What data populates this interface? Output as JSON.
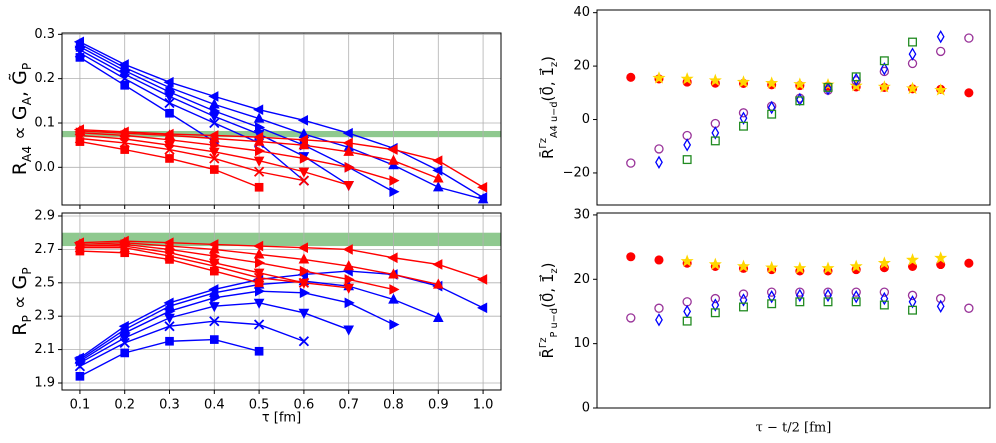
{
  "chart_data": [
    {
      "type": "line",
      "ylabel": "R_{A4} ∝ G_{A}, G̃_{P}",
      "x": [
        0.1,
        0.2,
        0.3,
        0.4,
        0.5,
        0.6,
        0.7,
        0.8,
        0.9,
        1.0
      ],
      "xlim": [
        0.06,
        1.04
      ],
      "ylim": [
        -0.085,
        0.303
      ],
      "xticks": [
        0.1,
        0.2,
        0.3,
        0.4,
        0.5,
        0.6,
        0.7,
        0.8,
        0.9,
        {
          "value": 1,
          "label": "1.0"
        }
      ],
      "show_xtick_labels": false,
      "yticks": [
        {
          "value": 0,
          "label": "0.0"
        },
        0.1,
        0.2,
        0.3
      ],
      "grid": true,
      "band": [
        0.068,
        0.082
      ],
      "band_color": "#8fc98f",
      "series": [
        {
          "color": "#0000ff",
          "marker": "triangle-left",
          "values": [
            0.283,
            0.232,
            0.192,
            0.16,
            0.13,
            0.106,
            0.077,
            0.043,
            -0.007,
            -0.068
          ]
        },
        {
          "color": "#0000ff",
          "marker": "triangle-up",
          "values": [
            0.278,
            0.225,
            0.18,
            0.142,
            0.11,
            0.075,
            0.045,
            0.005,
            -0.045,
            -0.072
          ]
        },
        {
          "color": "#0000ff",
          "marker": "triangle-right",
          "values": [
            0.272,
            0.218,
            0.17,
            0.127,
            0.09,
            0.05,
            0.0,
            -0.055,
            null,
            null
          ]
        },
        {
          "color": "#0000ff",
          "marker": "triangle-down",
          "values": [
            0.265,
            0.21,
            0.16,
            0.115,
            0.075,
            0.025,
            -0.04,
            null,
            null,
            null
          ]
        },
        {
          "color": "#0000ff",
          "marker": "x",
          "values": [
            0.258,
            0.2,
            0.145,
            0.1,
            0.055,
            -0.03,
            null,
            null,
            null,
            null
          ]
        },
        {
          "color": "#0000ff",
          "marker": "square",
          "values": [
            0.248,
            0.185,
            0.122,
            0.058,
            null,
            null,
            null,
            null,
            null,
            null
          ]
        },
        {
          "color": "#ff0000",
          "marker": "triangle-left",
          "values": [
            0.085,
            0.08,
            0.075,
            0.072,
            0.068,
            0.062,
            0.055,
            0.04,
            0.015,
            -0.045
          ]
        },
        {
          "color": "#ff0000",
          "marker": "triangle-up",
          "values": [
            0.082,
            0.077,
            0.072,
            0.065,
            0.058,
            0.05,
            0.035,
            0.015,
            -0.025,
            null
          ]
        },
        {
          "color": "#ff0000",
          "marker": "triangle-right",
          "values": [
            0.078,
            0.072,
            0.062,
            0.05,
            0.037,
            0.02,
            0.0,
            -0.03,
            null,
            null
          ]
        },
        {
          "color": "#ff0000",
          "marker": "triangle-down",
          "values": [
            0.072,
            0.064,
            0.05,
            0.035,
            0.015,
            -0.01,
            -0.04,
            null,
            null,
            null
          ]
        },
        {
          "color": "#ff0000",
          "marker": "x",
          "values": [
            0.065,
            0.055,
            0.04,
            0.02,
            -0.01,
            -0.03,
            null,
            null,
            null,
            null
          ]
        },
        {
          "color": "#ff0000",
          "marker": "square",
          "values": [
            0.058,
            0.04,
            0.02,
            -0.005,
            -0.045,
            null,
            null,
            null,
            null,
            null
          ]
        }
      ]
    },
    {
      "type": "line",
      "ylabel": "R_{P} ∝ G_{P}",
      "xlabel": "τ [fm]",
      "x": [
        0.1,
        0.2,
        0.3,
        0.4,
        0.5,
        0.6,
        0.7,
        0.8,
        0.9,
        1.0
      ],
      "xlim": [
        0.06,
        1.04
      ],
      "ylim": [
        1.858,
        2.918
      ],
      "xticks": [
        0.1,
        0.2,
        0.3,
        0.4,
        0.5,
        0.6,
        0.7,
        0.8,
        0.9,
        {
          "value": 1,
          "label": "1.0"
        }
      ],
      "show_xtick_labels": true,
      "yticks": [
        1.9,
        2.1,
        2.3,
        2.5,
        2.7,
        2.9
      ],
      "grid": true,
      "band": [
        2.72,
        2.8
      ],
      "band_color": "#8fc98f",
      "series": [
        {
          "color": "#0000ff",
          "marker": "triangle-left",
          "values": [
            2.05,
            2.24,
            2.38,
            2.46,
            2.52,
            2.55,
            2.57,
            2.55,
            2.48,
            2.35
          ]
        },
        {
          "color": "#0000ff",
          "marker": "triangle-up",
          "values": [
            2.04,
            2.22,
            2.36,
            2.44,
            2.49,
            2.51,
            2.48,
            2.4,
            2.29,
            null
          ]
        },
        {
          "color": "#0000ff",
          "marker": "triangle-right",
          "values": [
            2.03,
            2.2,
            2.33,
            2.41,
            2.45,
            2.44,
            2.38,
            2.25,
            null,
            null
          ]
        },
        {
          "color": "#0000ff",
          "marker": "triangle-down",
          "values": [
            2.02,
            2.17,
            2.29,
            2.36,
            2.38,
            2.32,
            2.22,
            null,
            null,
            null
          ]
        },
        {
          "color": "#0000ff",
          "marker": "x",
          "values": [
            2.0,
            2.14,
            2.24,
            2.27,
            2.25,
            2.15,
            null,
            null,
            null,
            null
          ]
        },
        {
          "color": "#0000ff",
          "marker": "square",
          "values": [
            1.94,
            2.08,
            2.15,
            2.16,
            2.09,
            null,
            null,
            null,
            null,
            null
          ]
        },
        {
          "color": "#ff0000",
          "marker": "triangle-left",
          "values": [
            2.74,
            2.75,
            2.74,
            2.73,
            2.72,
            2.71,
            2.7,
            2.65,
            2.61,
            2.52
          ]
        },
        {
          "color": "#ff0000",
          "marker": "triangle-up",
          "values": [
            2.73,
            2.74,
            2.72,
            2.7,
            2.67,
            2.64,
            2.6,
            2.55,
            2.49,
            null
          ]
        },
        {
          "color": "#ff0000",
          "marker": "triangle-right",
          "values": [
            2.72,
            2.73,
            2.7,
            2.66,
            2.62,
            2.57,
            2.52,
            2.46,
            null,
            null
          ]
        },
        {
          "color": "#ff0000",
          "marker": "triangle-down",
          "values": [
            2.72,
            2.72,
            2.68,
            2.62,
            2.56,
            2.5,
            2.47,
            null,
            null,
            null
          ]
        },
        {
          "color": "#ff0000",
          "marker": "x",
          "values": [
            2.71,
            2.71,
            2.66,
            2.6,
            2.53,
            2.5,
            null,
            null,
            null,
            null
          ]
        },
        {
          "color": "#ff0000",
          "marker": "square",
          "values": [
            2.69,
            2.68,
            2.64,
            2.57,
            2.5,
            null,
            null,
            null,
            null,
            null
          ]
        }
      ]
    },
    {
      "type": "scatter",
      "ylabel": "R̄^{Γz}_{A4 u−d}(0⃗, 1⃗_{z})",
      "xlim": [
        -0.2,
        13.75
      ],
      "ylim": [
        -32,
        41
      ],
      "yticks": [
        {
          "value": -20,
          "label": "−20"
        },
        0,
        20,
        40
      ],
      "grid": false,
      "series": [
        {
          "color": "#ff0000",
          "marker": "circle",
          "open": false,
          "x": [
            1,
            2,
            3,
            4,
            5,
            6,
            7,
            8,
            9,
            10,
            11,
            12,
            13
          ],
          "values": [
            15.8,
            15.2,
            14.0,
            13.6,
            13.5,
            13.0,
            12.7,
            12.5,
            12.2,
            12.0,
            11.5,
            11.3,
            10.0
          ]
        },
        {
          "color": "#ffd700",
          "marker": "star",
          "open": false,
          "x": [
            2,
            3,
            4,
            5,
            6,
            7,
            8,
            9,
            10,
            11,
            12
          ],
          "values": [
            15.5,
            15.2,
            14.6,
            14.0,
            13.6,
            13.2,
            13.0,
            12.6,
            12.2,
            11.6,
            11.0
          ]
        },
        {
          "color": "#993399",
          "marker": "circle",
          "open": true,
          "x": [
            1,
            2,
            3,
            4,
            5,
            6,
            7,
            8,
            9,
            10,
            11,
            12,
            13
          ],
          "values": [
            -16.3,
            -11,
            -6,
            -1.5,
            2.5,
            5,
            8,
            11,
            14.5,
            18,
            21,
            25.5,
            30.5
          ]
        },
        {
          "color": "#0000ff",
          "marker": "diamond",
          "open": true,
          "x": [
            2,
            3,
            4,
            5,
            6,
            7,
            8,
            9,
            10,
            11,
            12
          ],
          "values": [
            -16,
            -9.5,
            -5,
            0.5,
            4.5,
            7.5,
            11.5,
            15,
            19,
            24.5,
            31
          ]
        },
        {
          "color": "#228b22",
          "marker": "square",
          "open": true,
          "x": [
            3,
            4,
            5,
            6,
            7,
            8,
            9,
            10,
            11
          ],
          "values": [
            -15,
            -8,
            -2.5,
            2,
            7,
            12,
            16,
            22,
            29
          ]
        }
      ]
    },
    {
      "type": "scatter",
      "ylabel": "R̄^{Γz}_{P u−d}(0⃗, 1⃗_{z})",
      "xlabel": "τ − t/2 [fm]",
      "xlim": [
        -0.2,
        13.75
      ],
      "ylim": [
        0,
        30.3
      ],
      "yticks": [
        0,
        10,
        20,
        30
      ],
      "grid": false,
      "series": [
        {
          "color": "#ff0000",
          "marker": "circle",
          "open": false,
          "x": [
            1,
            2,
            3,
            4,
            5,
            6,
            7,
            8,
            9,
            10,
            11,
            12,
            13
          ],
          "values": [
            23.5,
            23.0,
            22.5,
            22.0,
            21.7,
            21.5,
            21.3,
            21.3,
            21.5,
            21.8,
            22.0,
            22.3,
            22.5
          ]
        },
        {
          "color": "#ffd700",
          "marker": "star",
          "open": false,
          "x": [
            3,
            4,
            5,
            6,
            7,
            8,
            9,
            10,
            11,
            12
          ],
          "values": [
            22.8,
            22.3,
            22.0,
            21.8,
            21.7,
            21.7,
            22.0,
            22.5,
            23.0,
            23.3
          ]
        },
        {
          "color": "#993399",
          "marker": "circle",
          "open": true,
          "x": [
            1,
            2,
            3,
            4,
            5,
            6,
            7,
            8,
            9,
            10,
            11,
            12,
            13
          ],
          "values": [
            14.0,
            15.5,
            16.5,
            17.0,
            17.7,
            18.0,
            18.0,
            18.0,
            18.0,
            18.0,
            17.5,
            17.0,
            15.5
          ]
        },
        {
          "color": "#0000ff",
          "marker": "diamond",
          "open": true,
          "x": [
            2,
            3,
            4,
            5,
            6,
            7,
            8,
            9,
            10,
            11,
            12
          ],
          "values": [
            13.7,
            15.0,
            16.0,
            16.8,
            17.3,
            17.5,
            17.5,
            17.3,
            17.0,
            16.5,
            15.8
          ]
        },
        {
          "color": "#228b22",
          "marker": "square",
          "open": true,
          "x": [
            3,
            4,
            5,
            6,
            7,
            8,
            9,
            10,
            11
          ],
          "values": [
            13.5,
            14.8,
            15.7,
            16.2,
            16.5,
            16.5,
            16.5,
            16.0,
            15.2
          ]
        }
      ]
    }
  ]
}
